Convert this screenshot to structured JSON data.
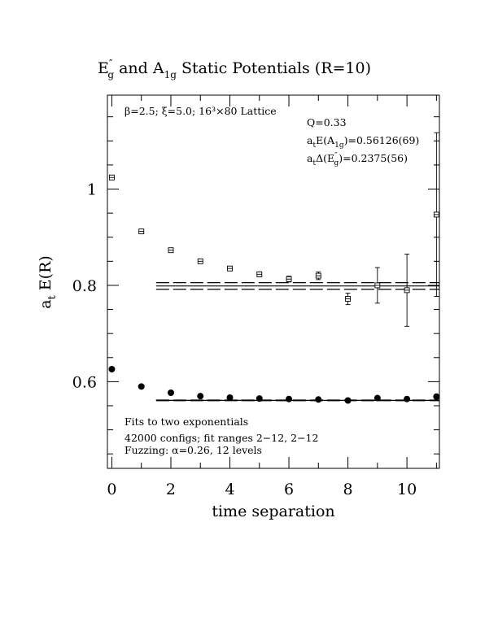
{
  "chart_data": {
    "type": "scatter",
    "title": {
      "lead": "E",
      "lead_sup": "″",
      "lead_sub": "g",
      "mid": " and A",
      "mid_sub": "1g",
      "tail": " Static Potentials (R=10)"
    },
    "xlabel": "time separation",
    "ylabel": {
      "main": "a",
      "sub": "t",
      "rest": " E(R)"
    },
    "xlim": [
      -0.15,
      11.1
    ],
    "ylim": [
      0.42,
      1.195
    ],
    "x_ticks": [
      0,
      2,
      4,
      6,
      8,
      10
    ],
    "x_tick_labels": [
      "0",
      "2",
      "4",
      "6",
      "8",
      "10"
    ],
    "y_ticks": [
      0.6,
      0.8,
      1.0
    ],
    "y_tick_labels": [
      "0.6",
      "0.8",
      "1"
    ],
    "x_minor_step": 1,
    "y_minor_step": 0.05,
    "grid": false,
    "series": [
      {
        "marker": "open-square",
        "points": [
          {
            "x": 0,
            "y": 1.024,
            "err": 0.004
          },
          {
            "x": 1,
            "y": 0.912,
            "err": 0.004
          },
          {
            "x": 2,
            "y": 0.873,
            "err": 0.004
          },
          {
            "x": 3,
            "y": 0.85,
            "err": 0.004
          },
          {
            "x": 4,
            "y": 0.835,
            "err": 0.004
          },
          {
            "x": 5,
            "y": 0.823,
            "err": 0.005
          },
          {
            "x": 6,
            "y": 0.813,
            "err": 0.006
          },
          {
            "x": 7,
            "y": 0.82,
            "err": 0.008
          },
          {
            "x": 8,
            "y": 0.772,
            "err": 0.012
          },
          {
            "x": 9,
            "y": 0.8,
            "err": 0.037
          },
          {
            "x": 10,
            "y": 0.79,
            "err": 0.075
          },
          {
            "x": 11,
            "y": 0.947,
            "err": 0.17
          }
        ],
        "fit": {
          "value": 0.79876,
          "err": 0.0069,
          "x_range": [
            1.5,
            11.1
          ]
        }
      },
      {
        "marker": "filled-circle",
        "points": [
          {
            "x": 0,
            "y": 0.626
          },
          {
            "x": 1,
            "y": 0.59
          },
          {
            "x": 2,
            "y": 0.577
          },
          {
            "x": 3,
            "y": 0.57
          },
          {
            "x": 4,
            "y": 0.567
          },
          {
            "x": 5,
            "y": 0.565
          },
          {
            "x": 6,
            "y": 0.564
          },
          {
            "x": 7,
            "y": 0.563
          },
          {
            "x": 8,
            "y": 0.561
          },
          {
            "x": 9,
            "y": 0.566
          },
          {
            "x": 10,
            "y": 0.564
          },
          {
            "x": 11,
            "y": 0.569
          }
        ],
        "fit": {
          "value": 0.56126,
          "err": 0.00069,
          "x_range": [
            1.5,
            11.1
          ]
        }
      }
    ],
    "annotations": {
      "lattice": "β=2.5; ξ=5.0; 16³×80 Lattice",
      "q": "Q=0.33",
      "energy": {
        "pre": "a",
        "pre_sub": "t",
        "mid": "E(A",
        "mid_sub": "1g",
        "post": ")=0.56126(69)"
      },
      "gap": {
        "pre": "a",
        "pre_sub": "t",
        "mid": "Δ(E",
        "mid_sup": "″",
        "mid_sub": "g",
        "post": ")=0.2375(56)"
      },
      "fits": "Fits to two exponentials",
      "configs": "42000 configs; fit ranges 2−12, 2−12",
      "fuzzing": "Fuzzing: α=0.26, 12 levels"
    }
  }
}
